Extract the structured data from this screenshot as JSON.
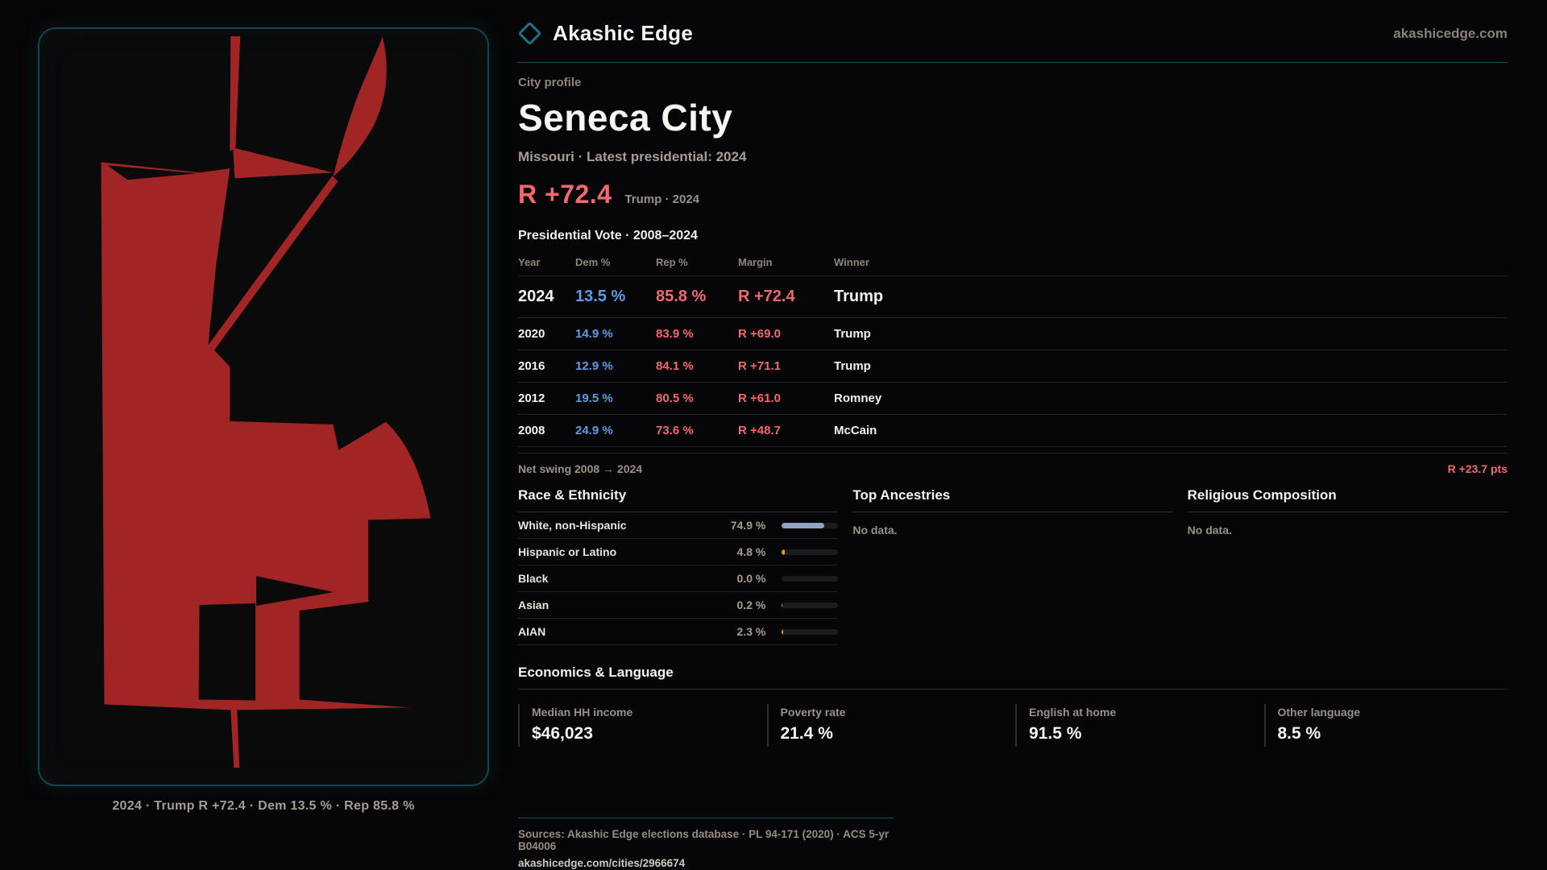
{
  "brand": {
    "name": "Akashic Edge",
    "domain": "akashicedge.com"
  },
  "profile": {
    "kicker": "City profile",
    "title": "Seneca City",
    "subtitle": "Missouri · Latest presidential: 2024",
    "margin_value": "R +72.4",
    "margin_note": "Trump · 2024"
  },
  "map": {
    "caption": "2024 · Trump R +72.4 · Dem 13.5 % · Rep 85.8 %"
  },
  "table": {
    "title": "Presidential Vote · 2008–2024",
    "headers": [
      "Year",
      "Dem %",
      "Rep %",
      "Margin",
      "Winner"
    ],
    "rows": [
      {
        "year": "2024",
        "dem": "13.5 %",
        "rep": "85.8 %",
        "margin": "R +72.4",
        "winner": "Trump"
      },
      {
        "year": "2020",
        "dem": "14.9 %",
        "rep": "83.9 %",
        "margin": "R +69.0",
        "winner": "Trump"
      },
      {
        "year": "2016",
        "dem": "12.9 %",
        "rep": "84.1 %",
        "margin": "R +71.1",
        "winner": "Trump"
      },
      {
        "year": "2012",
        "dem": "19.5 %",
        "rep": "80.5 %",
        "margin": "R +61.0",
        "winner": "Romney"
      },
      {
        "year": "2008",
        "dem": "24.9 %",
        "rep": "73.6 %",
        "margin": "R +48.7",
        "winner": "McCain"
      }
    ]
  },
  "net_swing": {
    "label": "Net swing 2008 → 2024",
    "value": "R +23.7 pts"
  },
  "race": {
    "title": "Race & Ethnicity",
    "rows": [
      {
        "label": "White, non-Hispanic",
        "value": "74.9 %",
        "pct": 74.9,
        "fill": "#8fa3bd"
      },
      {
        "label": "Hispanic or Latino",
        "value": "4.8 %",
        "pct": 4.8,
        "fill": "#e09b2d"
      },
      {
        "label": "Black",
        "value": "0.0 %",
        "pct": 0.0,
        "fill": "#e09b2d"
      },
      {
        "label": "Asian",
        "value": "0.2 %",
        "pct": 0.2,
        "fill": "#e09b2d"
      },
      {
        "label": "AIAN",
        "value": "2.3 %",
        "pct": 2.3,
        "fill": "#e09b2d"
      }
    ]
  },
  "ancestries": {
    "title": "Top Ancestries",
    "empty": "No data."
  },
  "religion": {
    "title": "Religious Composition",
    "empty": "No data."
  },
  "economics": {
    "title": "Economics & Language",
    "stats": [
      {
        "label": "Median HH income",
        "value": "$46,023"
      },
      {
        "label": "Poverty rate",
        "value": "21.4 %"
      },
      {
        "label": "English at home",
        "value": "91.5 %"
      },
      {
        "label": "Other language",
        "value": "8.5 %"
      }
    ]
  },
  "footer": {
    "sources": "Sources: Akashic Edge elections database · PL 94-171 (2020) · ACS 5-yr B04006",
    "permalink": "akashicedge.com/cities/2966674"
  },
  "colors": {
    "accent_teal": "#1e7083",
    "map_red": "#a12525",
    "salmon": "#f2686c",
    "dem_blue": "#5c9ce5",
    "bar_orange": "#e09b2d",
    "bar_blue": "#8fa3bd"
  }
}
